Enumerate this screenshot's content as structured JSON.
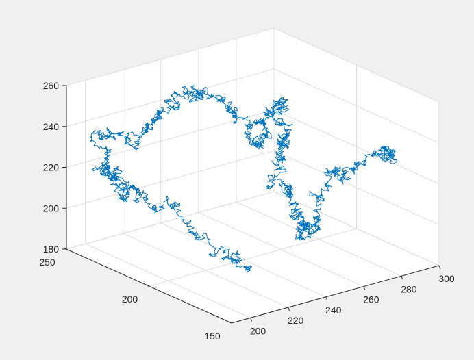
{
  "chart_data": {
    "type": "line",
    "subtype": "3d-random-walk",
    "title": "",
    "xlabel": "",
    "ylabel": "",
    "zlabel": "",
    "xlim": [
      190,
      300
    ],
    "ylim": [
      150,
      250
    ],
    "zlim": [
      180,
      260
    ],
    "x_ticks": [
      "200",
      "220",
      "240",
      "260",
      "280",
      "300"
    ],
    "y_ticks": [
      "150",
      "200",
      "250"
    ],
    "z_ticks": [
      "180",
      "200",
      "220",
      "240",
      "260"
    ],
    "grid": true,
    "box": false,
    "view": "default-3d",
    "series": [
      {
        "color": "#0072bd",
        "description_points": [
          {
            "x": 212,
            "y": 166,
            "z": 194
          },
          {
            "x": 210,
            "y": 178,
            "z": 198
          },
          {
            "x": 204,
            "y": 204,
            "z": 213
          },
          {
            "x": 196,
            "y": 218,
            "z": 220
          },
          {
            "x": 194,
            "y": 232,
            "z": 228
          },
          {
            "x": 198,
            "y": 224,
            "z": 212
          },
          {
            "x": 192,
            "y": 236,
            "z": 242
          },
          {
            "x": 200,
            "y": 220,
            "z": 240
          },
          {
            "x": 214,
            "y": 222,
            "z": 248
          },
          {
            "x": 232,
            "y": 228,
            "z": 254
          },
          {
            "x": 242,
            "y": 222,
            "z": 252
          },
          {
            "x": 246,
            "y": 210,
            "z": 244
          },
          {
            "x": 244,
            "y": 196,
            "z": 236
          },
          {
            "x": 250,
            "y": 198,
            "z": 248
          },
          {
            "x": 255,
            "y": 196,
            "z": 255
          },
          {
            "x": 252,
            "y": 188,
            "z": 242
          },
          {
            "x": 248,
            "y": 186,
            "z": 238
          },
          {
            "x": 244,
            "y": 182,
            "z": 224
          },
          {
            "x": 246,
            "y": 174,
            "z": 212
          },
          {
            "x": 244,
            "y": 170,
            "z": 202
          },
          {
            "x": 251,
            "y": 168,
            "z": 208
          },
          {
            "x": 262,
            "y": 174,
            "z": 226
          },
          {
            "x": 268,
            "y": 166,
            "z": 228
          },
          {
            "x": 282,
            "y": 160,
            "z": 236
          },
          {
            "x": 286,
            "y": 164,
            "z": 232
          }
        ]
      }
    ]
  }
}
